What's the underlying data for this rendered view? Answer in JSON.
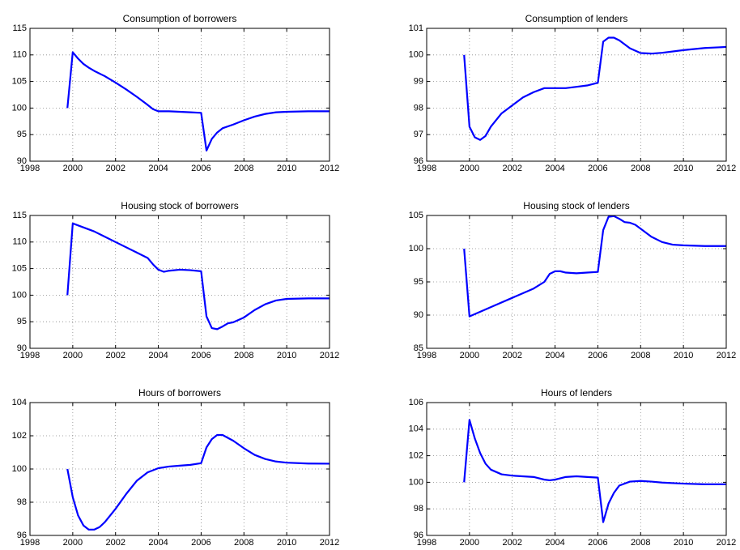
{
  "chart_data": [
    {
      "type": "line",
      "title": "Consumption of borrowers",
      "color": "#0000ff",
      "grid": true,
      "xlim": [
        1998,
        2012
      ],
      "xticks": [
        1998,
        2000,
        2002,
        2004,
        2006,
        2008,
        2010,
        2012
      ],
      "ylim": [
        90,
        115
      ],
      "yticks": [
        90,
        95,
        100,
        105,
        110,
        115
      ],
      "x": [
        1999.75,
        2000,
        2000.25,
        2000.5,
        2000.75,
        2001,
        2001.5,
        2002,
        2002.5,
        2003,
        2003.5,
        2003.75,
        2004,
        2004.5,
        2005,
        2005.5,
        2006,
        2006.25,
        2006.5,
        2006.75,
        2007,
        2007.5,
        2008,
        2008.5,
        2009,
        2009.5,
        2010,
        2011,
        2012
      ],
      "values": [
        100,
        110.5,
        109.3,
        108.3,
        107.6,
        107,
        106,
        104.8,
        103.5,
        102.1,
        100.6,
        99.8,
        99.4,
        99.4,
        99.3,
        99.2,
        99.1,
        92,
        94.2,
        95.4,
        96.2,
        96.9,
        97.7,
        98.4,
        98.9,
        99.2,
        99.3,
        99.4,
        99.4
      ]
    },
    {
      "type": "line",
      "title": "Consumption of lenders",
      "color": "#0000ff",
      "grid": true,
      "xlim": [
        1998,
        2012
      ],
      "xticks": [
        1998,
        2000,
        2002,
        2004,
        2006,
        2008,
        2010,
        2012
      ],
      "ylim": [
        96,
        101
      ],
      "yticks": [
        96,
        97,
        98,
        99,
        100,
        101
      ],
      "x": [
        1999.75,
        2000,
        2000.25,
        2000.5,
        2000.75,
        2001,
        2001.5,
        2002,
        2002.5,
        2003,
        2003.5,
        2004,
        2004.5,
        2005,
        2005.5,
        2006,
        2006.25,
        2006.5,
        2006.75,
        2007,
        2007.5,
        2008,
        2008.5,
        2009,
        2010,
        2011,
        2012
      ],
      "values": [
        100,
        97.3,
        96.9,
        96.8,
        96.95,
        97.3,
        97.8,
        98.1,
        98.4,
        98.6,
        98.75,
        98.75,
        98.75,
        98.8,
        98.85,
        98.95,
        100.5,
        100.65,
        100.65,
        100.55,
        100.25,
        100.07,
        100.05,
        100.08,
        100.18,
        100.26,
        100.3
      ]
    },
    {
      "type": "line",
      "title": "Housing stock of borrowers",
      "color": "#0000ff",
      "grid": true,
      "xlim": [
        1998,
        2012
      ],
      "xticks": [
        1998,
        2000,
        2002,
        2004,
        2006,
        2008,
        2010,
        2012
      ],
      "ylim": [
        90,
        115
      ],
      "yticks": [
        90,
        95,
        100,
        105,
        110,
        115
      ],
      "x": [
        1999.75,
        2000,
        2001,
        2002,
        2003,
        2003.5,
        2003.75,
        2004,
        2004.25,
        2004.5,
        2005,
        2005.5,
        2006,
        2006.25,
        2006.5,
        2006.75,
        2007,
        2007.25,
        2007.5,
        2008,
        2008.5,
        2009,
        2009.5,
        2010,
        2011,
        2012
      ],
      "values": [
        100,
        113.5,
        112,
        110,
        108,
        107,
        105.8,
        104.8,
        104.4,
        104.6,
        104.8,
        104.7,
        104.5,
        96,
        93.8,
        93.6,
        94.1,
        94.7,
        94.9,
        95.8,
        97.2,
        98.3,
        99,
        99.3,
        99.4,
        99.4
      ]
    },
    {
      "type": "line",
      "title": "Housing stock of lenders",
      "color": "#0000ff",
      "grid": true,
      "xlim": [
        1998,
        2012
      ],
      "xticks": [
        1998,
        2000,
        2002,
        2004,
        2006,
        2008,
        2010,
        2012
      ],
      "ylim": [
        85,
        105
      ],
      "yticks": [
        85,
        90,
        95,
        100,
        105
      ],
      "x": [
        1999.75,
        2000,
        2001,
        2002,
        2003,
        2003.5,
        2003.75,
        2004,
        2004.25,
        2004.5,
        2005,
        2005.5,
        2006,
        2006.25,
        2006.5,
        2006.75,
        2007,
        2007.25,
        2007.5,
        2007.75,
        2008,
        2008.5,
        2009,
        2009.5,
        2010,
        2011,
        2012
      ],
      "values": [
        100,
        89.8,
        91.2,
        92.6,
        94,
        95,
        96.2,
        96.6,
        96.6,
        96.4,
        96.3,
        96.4,
        96.5,
        102.8,
        104.8,
        104.9,
        104.5,
        104,
        103.9,
        103.6,
        103,
        101.8,
        101,
        100.6,
        100.5,
        100.4,
        100.4
      ]
    },
    {
      "type": "line",
      "title": "Hours of borrowers",
      "color": "#0000ff",
      "grid": true,
      "xlim": [
        1998,
        2012
      ],
      "xticks": [
        1998,
        2000,
        2002,
        2004,
        2006,
        2008,
        2010,
        2012
      ],
      "ylim": [
        96,
        104
      ],
      "yticks": [
        96,
        98,
        100,
        102,
        104
      ],
      "x": [
        1999.75,
        2000,
        2000.25,
        2000.5,
        2000.75,
        2001,
        2001.25,
        2001.5,
        2002,
        2002.5,
        2003,
        2003.5,
        2004,
        2004.5,
        2005,
        2005.5,
        2006,
        2006.25,
        2006.5,
        2006.75,
        2007,
        2007.5,
        2008,
        2008.5,
        2009,
        2009.5,
        2010,
        2011,
        2012
      ],
      "values": [
        100,
        98.3,
        97.2,
        96.6,
        96.35,
        96.35,
        96.5,
        96.8,
        97.6,
        98.5,
        99.3,
        99.8,
        100.05,
        100.15,
        100.2,
        100.25,
        100.35,
        101.3,
        101.8,
        102.05,
        102.05,
        101.7,
        101.25,
        100.85,
        100.6,
        100.45,
        100.38,
        100.33,
        100.32
      ]
    },
    {
      "type": "line",
      "title": "Hours of lenders",
      "color": "#0000ff",
      "grid": true,
      "xlim": [
        1998,
        2012
      ],
      "xticks": [
        1998,
        2000,
        2002,
        2004,
        2006,
        2008,
        2010,
        2012
      ],
      "ylim": [
        96,
        106
      ],
      "yticks": [
        96,
        98,
        100,
        102,
        104,
        106
      ],
      "x": [
        1999.75,
        2000,
        2000.25,
        2000.5,
        2000.75,
        2001,
        2001.5,
        2002,
        2003,
        2003.5,
        2003.75,
        2004,
        2004.5,
        2005,
        2005.5,
        2006,
        2006.25,
        2006.5,
        2006.75,
        2007,
        2007.5,
        2008,
        2008.5,
        2009,
        2010,
        2011,
        2012
      ],
      "values": [
        100,
        104.7,
        103.3,
        102.2,
        101.4,
        100.95,
        100.6,
        100.5,
        100.4,
        100.2,
        100.15,
        100.2,
        100.4,
        100.45,
        100.4,
        100.35,
        97,
        98.4,
        99.2,
        99.75,
        100.05,
        100.1,
        100.05,
        99.98,
        99.9,
        99.85,
        99.85
      ]
    }
  ]
}
